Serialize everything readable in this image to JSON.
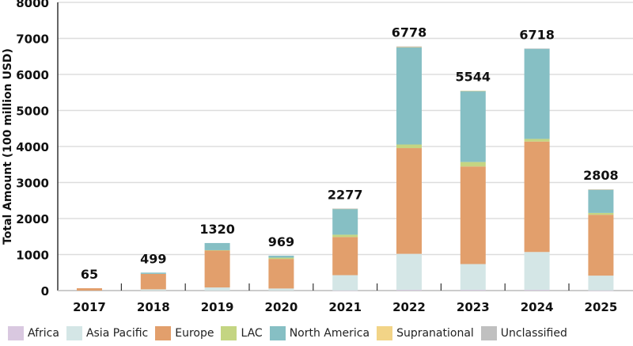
{
  "chart_data": {
    "type": "bar",
    "stacked": true,
    "title": "",
    "xlabel": "",
    "ylabel": "Total Amount (100 million USD)",
    "ylim": [
      0,
      8000
    ],
    "yticks": [
      "0",
      "1000",
      "2000",
      "3000",
      "4000",
      "5000",
      "6000",
      "7000",
      "8000"
    ],
    "grid": true,
    "legend_position": "bottom",
    "categories": [
      "2017",
      "2018",
      "2019",
      "2020",
      "2021",
      "2022",
      "2023",
      "2024",
      "2025"
    ],
    "totals": [
      "65",
      "499",
      "1320",
      "969",
      "2277",
      "6778",
      "5544",
      "6718",
      "2808"
    ],
    "series": [
      {
        "name": "Africa",
        "color": "#d9c8e0",
        "values": [
          0,
          0,
          0,
          0,
          3,
          20,
          20,
          20,
          4
        ]
      },
      {
        "name": "Asia Pacific",
        "color": "#d4e6e6",
        "values": [
          0,
          35,
          87,
          58,
          425,
          1000,
          716,
          1051,
          411
        ]
      },
      {
        "name": "Europe",
        "color": "#e29f6c",
        "values": [
          65,
          429,
          1029,
          819,
          1058,
          2935,
          2709,
          3066,
          1690
        ]
      },
      {
        "name": "LAC",
        "color": "#c4d582",
        "values": [
          0,
          0,
          6,
          36,
          65,
          100,
          124,
          73,
          51
        ]
      },
      {
        "name": "North America",
        "color": "#86bfc4",
        "values": [
          0,
          35,
          198,
          56,
          717,
          2695,
          1974,
          2505,
          648
        ]
      },
      {
        "name": "Supranational",
        "color": "#f2d487",
        "values": [
          0,
          0,
          0,
          0,
          4,
          8,
          1,
          0,
          2
        ]
      },
      {
        "name": "Unclassified",
        "color": "#c0c0c0",
        "values": [
          0,
          0,
          0,
          0,
          5,
          20,
          0,
          3,
          2
        ]
      }
    ]
  }
}
